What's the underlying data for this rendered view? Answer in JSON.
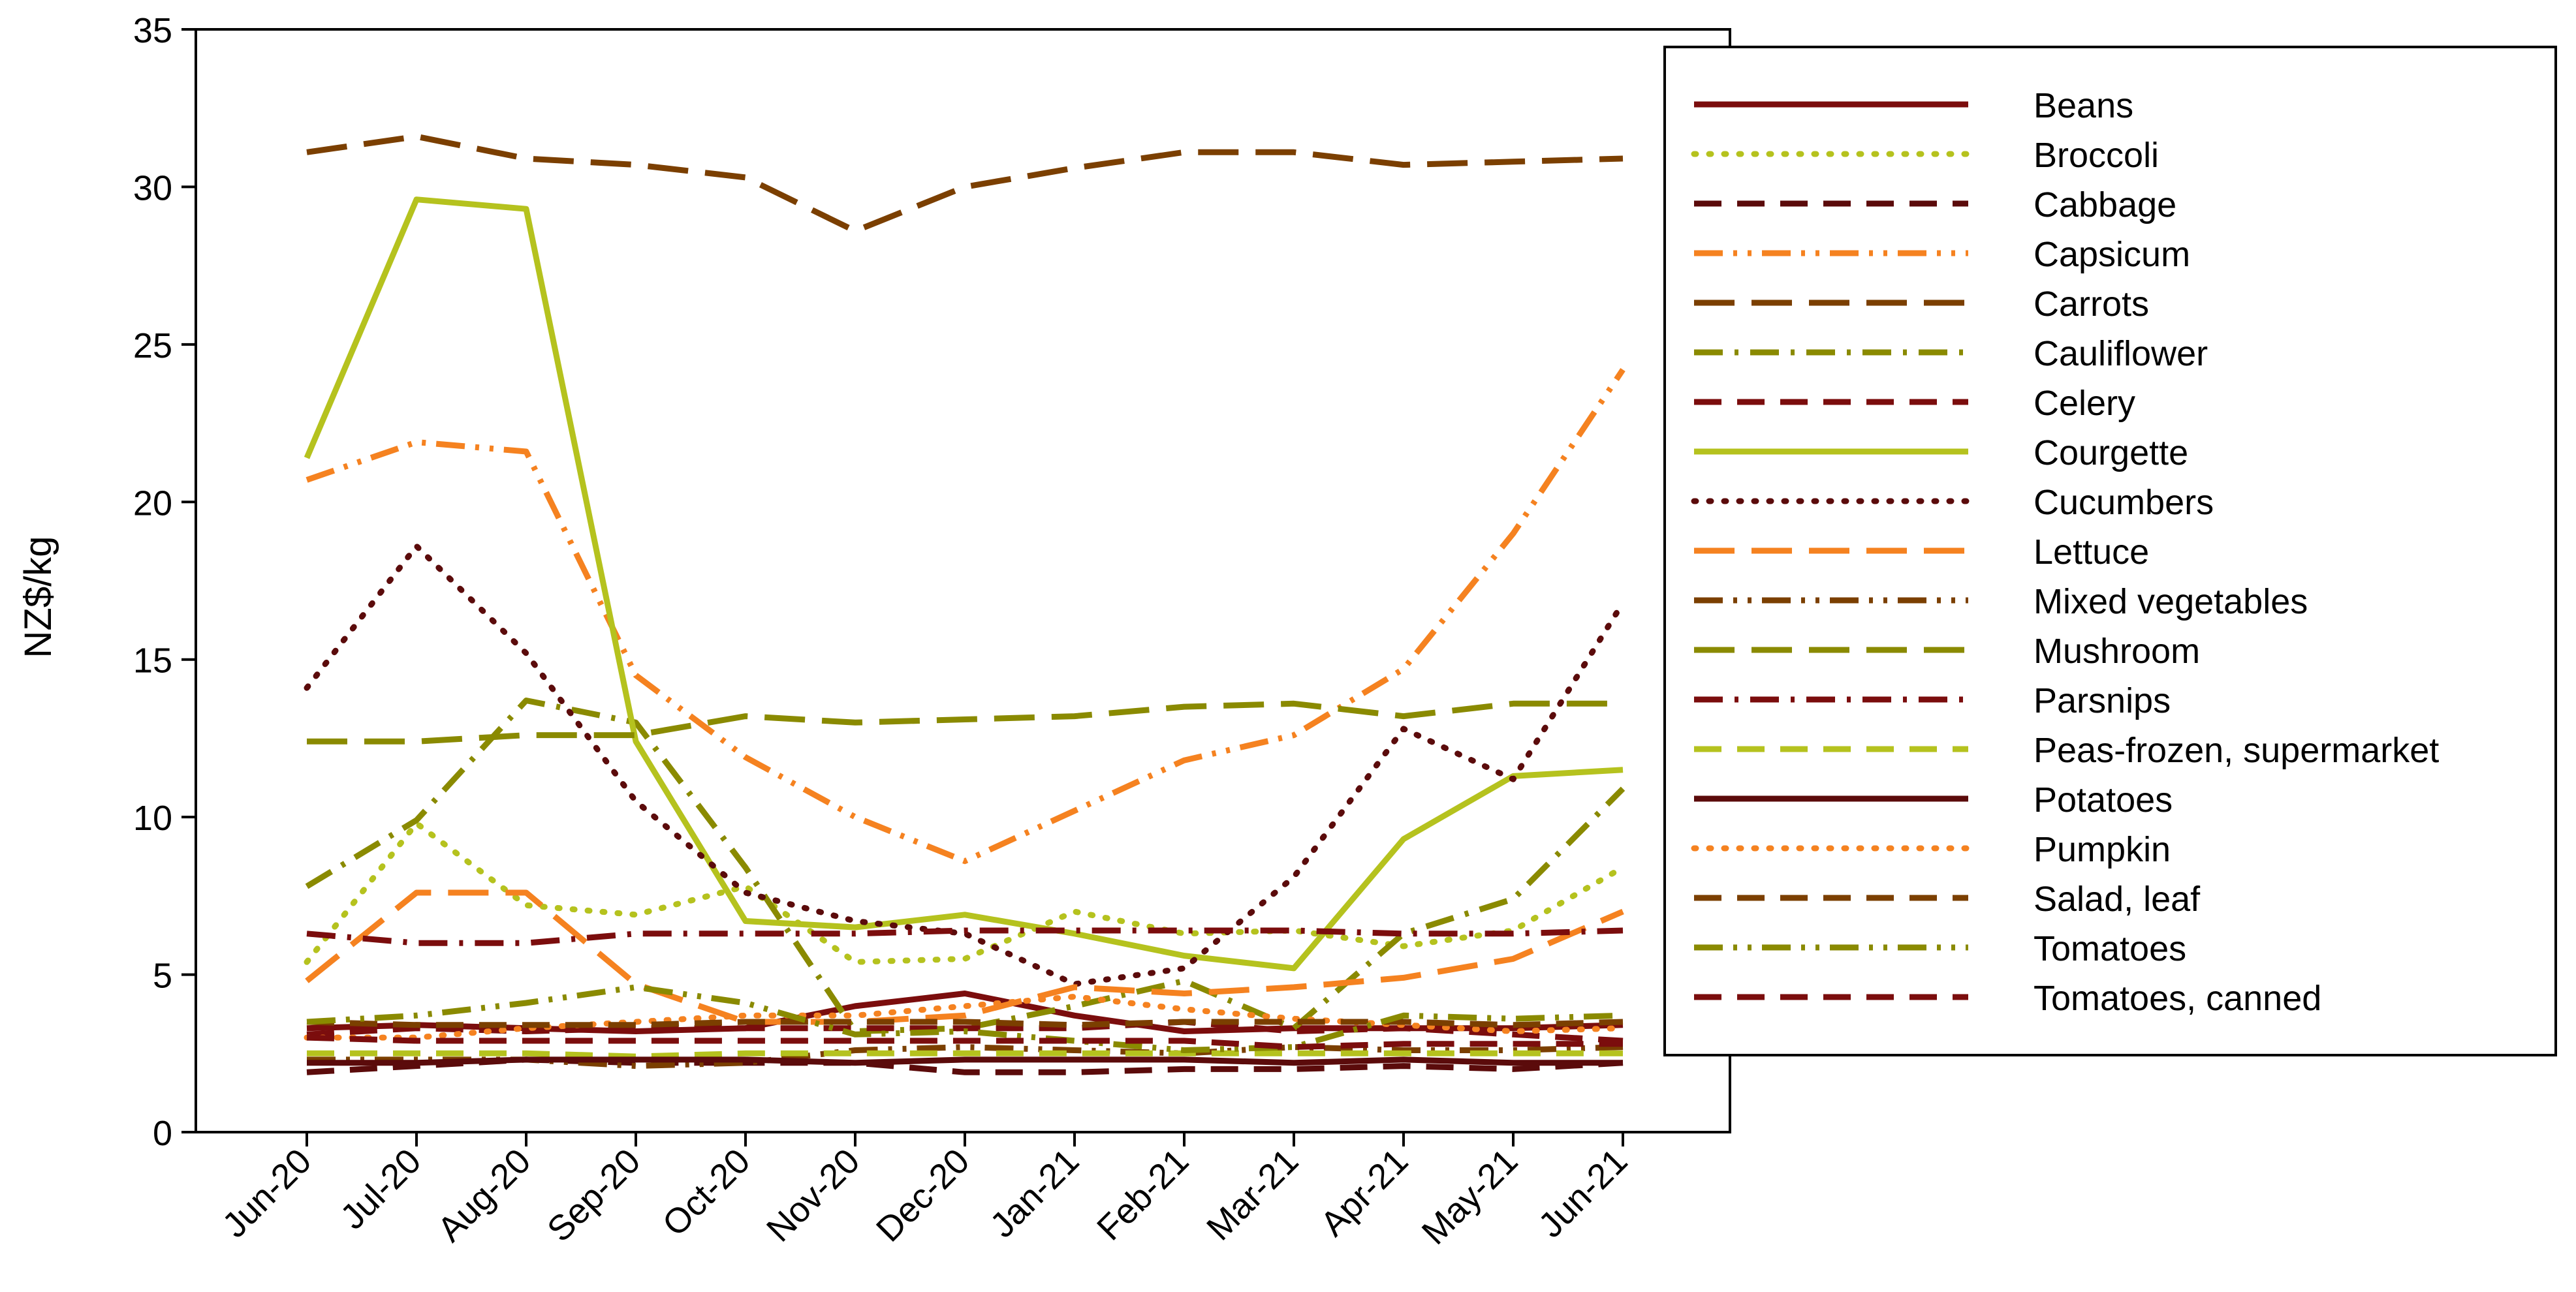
{
  "chart_data": {
    "type": "line",
    "title": "",
    "xlabel": "",
    "ylabel": "NZ$/kg",
    "ylim": [
      0,
      35
    ],
    "yticks": [
      "0",
      "5",
      "10",
      "15",
      "20",
      "25",
      "30",
      "35"
    ],
    "categories": [
      "Jun-20",
      "Jul-20",
      "Aug-20",
      "Sep-20",
      "Oct-20",
      "Nov-20",
      "Dec-20",
      "Jan-21",
      "Feb-21",
      "Mar-21",
      "Apr-21",
      "May-21",
      "Jun-21"
    ],
    "grid": false,
    "legend_position": "right",
    "series": [
      {
        "name": "Beans",
        "color": "#7b0d0d",
        "dash": "solid",
        "values": [
          3.3,
          3.4,
          3.3,
          3.2,
          3.3,
          4.0,
          4.4,
          3.7,
          3.2,
          3.3,
          3.3,
          3.3,
          3.4
        ]
      },
      {
        "name": "Broccoli",
        "color": "#b5c21e",
        "dash": "dot",
        "values": [
          5.4,
          9.8,
          7.2,
          6.9,
          7.8,
          5.4,
          5.5,
          7.0,
          6.3,
          6.4,
          5.9,
          6.4,
          8.4
        ]
      },
      {
        "name": "Cabbage",
        "color": "#5b0b0b",
        "dash": "dash",
        "values": [
          1.9,
          2.1,
          2.3,
          2.2,
          2.2,
          2.2,
          1.9,
          1.9,
          2.0,
          2.0,
          2.1,
          2.0,
          2.2
        ]
      },
      {
        "name": "Capsicum",
        "color": "#f58220",
        "dash": "dashdotdot",
        "values": [
          20.7,
          21.9,
          21.6,
          14.5,
          11.9,
          10.0,
          8.6,
          10.2,
          11.8,
          12.6,
          14.7,
          19.0,
          24.2
        ]
      },
      {
        "name": "Carrots",
        "color": "#7b3f00",
        "dash": "longdash",
        "values": [
          31.1,
          31.6,
          30.9,
          30.7,
          30.3,
          28.6,
          30.0,
          30.6,
          31.1,
          31.1,
          30.7,
          30.8,
          30.9
        ]
      },
      {
        "name": "Cauliflower",
        "color": "#8a8a00",
        "dash": "dashdot",
        "values": [
          7.8,
          9.9,
          13.7,
          13.0,
          8.4,
          3.2,
          3.3,
          4.0,
          4.8,
          3.3,
          6.3,
          7.4,
          10.9
        ]
      },
      {
        "name": "Celery",
        "color": "#7b0d0d",
        "dash": "dash",
        "values": [
          3.1,
          3.3,
          3.2,
          3.3,
          3.3,
          3.3,
          3.3,
          3.3,
          3.5,
          3.2,
          3.3,
          3.1,
          2.9
        ]
      },
      {
        "name": "Courgette",
        "color": "#b5c21e",
        "dash": "solid",
        "values": [
          21.4,
          29.6,
          29.3,
          12.4,
          6.7,
          6.5,
          6.9,
          6.3,
          5.6,
          5.2,
          9.3,
          11.3,
          11.5
        ]
      },
      {
        "name": "Cucumbers",
        "color": "#5b0b0b",
        "dash": "dot",
        "values": [
          14.1,
          18.6,
          15.2,
          10.5,
          7.6,
          6.7,
          6.3,
          4.7,
          5.2,
          8.1,
          12.8,
          11.2,
          16.8
        ]
      },
      {
        "name": "Lettuce",
        "color": "#f58220",
        "dash": "longdash",
        "values": [
          4.8,
          7.6,
          7.6,
          4.7,
          3.5,
          3.5,
          3.7,
          4.6,
          4.4,
          4.6,
          4.9,
          5.5,
          7.0
        ]
      },
      {
        "name": "Mixed vegetables",
        "color": "#7b3f00",
        "dash": "dashdotdot",
        "values": [
          2.3,
          2.3,
          2.3,
          2.1,
          2.2,
          2.6,
          2.7,
          2.6,
          2.5,
          2.7,
          2.6,
          2.6,
          2.7
        ]
      },
      {
        "name": "Mushroom",
        "color": "#8a8a00",
        "dash": "longdash",
        "values": [
          12.4,
          12.4,
          12.6,
          12.6,
          13.2,
          13.0,
          13.1,
          13.2,
          13.5,
          13.6,
          13.2,
          13.6,
          13.6
        ]
      },
      {
        "name": "Parsnips",
        "color": "#7b0d0d",
        "dash": "dashdot",
        "values": [
          6.3,
          6.0,
          6.0,
          6.3,
          6.3,
          6.3,
          6.4,
          6.4,
          6.4,
          6.4,
          6.3,
          6.3,
          6.4
        ]
      },
      {
        "name": "Peas-frozen, supermarket",
        "color": "#b5c21e",
        "dash": "dash",
        "values": [
          2.5,
          2.5,
          2.5,
          2.4,
          2.5,
          2.5,
          2.5,
          2.5,
          2.5,
          2.5,
          2.5,
          2.5,
          2.5
        ]
      },
      {
        "name": "Potatoes",
        "color": "#5b0b0b",
        "dash": "solid",
        "values": [
          2.2,
          2.2,
          2.3,
          2.3,
          2.3,
          2.2,
          2.3,
          2.3,
          2.3,
          2.2,
          2.3,
          2.2,
          2.2
        ]
      },
      {
        "name": "Pumpkin",
        "color": "#f58220",
        "dash": "dot",
        "values": [
          3.0,
          3.0,
          3.3,
          3.5,
          3.7,
          3.7,
          4.0,
          4.3,
          3.9,
          3.6,
          3.4,
          3.2,
          3.3
        ]
      },
      {
        "name": "Salad, leaf",
        "color": "#7b3f00",
        "dash": "dash",
        "values": [
          3.5,
          3.4,
          3.4,
          3.4,
          3.5,
          3.5,
          3.5,
          3.4,
          3.5,
          3.5,
          3.5,
          3.4,
          3.5
        ]
      },
      {
        "name": "Tomatoes",
        "color": "#8a8a00",
        "dash": "dashdotdot",
        "values": [
          3.5,
          3.7,
          4.1,
          4.6,
          4.1,
          3.1,
          3.2,
          2.9,
          2.6,
          2.7,
          3.7,
          3.6,
          3.7
        ]
      },
      {
        "name": "Tomatoes, canned",
        "color": "#7b0d0d",
        "dash": "dash",
        "values": [
          3.0,
          2.9,
          2.9,
          2.9,
          2.9,
          2.9,
          2.9,
          2.9,
          2.9,
          2.7,
          2.8,
          2.8,
          2.8
        ]
      }
    ]
  }
}
